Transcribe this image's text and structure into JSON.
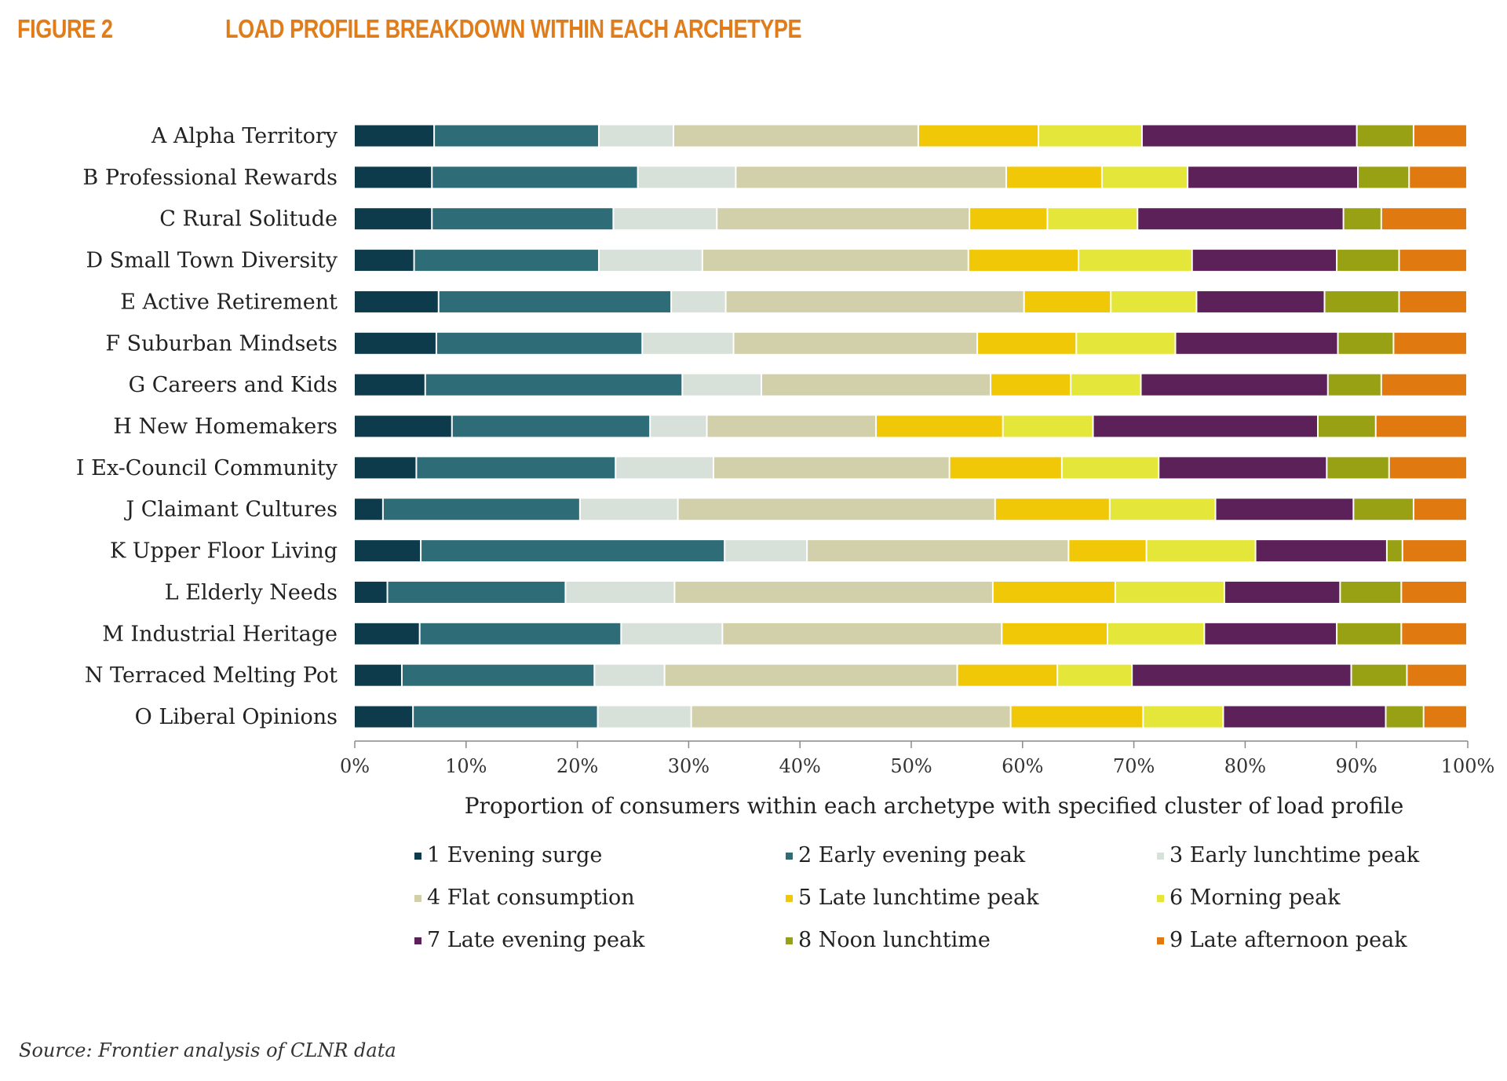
{
  "figure": {
    "label": "FIGURE 2",
    "title": "LOAD PROFILE BREAKDOWN WITHIN EACH ARCHETYPE",
    "source": "Source: Frontier analysis of CLNR data"
  },
  "chart_data": {
    "type": "bar",
    "orientation": "horizontal",
    "stacked": true,
    "percent_stacked": true,
    "title": "",
    "xlabel": "Proportion of consumers within each archetype with specified cluster of load profile",
    "ylabel": "",
    "xlim": [
      0,
      100
    ],
    "x_ticks": [
      "0%",
      "10%",
      "20%",
      "30%",
      "40%",
      "50%",
      "60%",
      "70%",
      "80%",
      "90%",
      "100%"
    ],
    "grid": false,
    "legend_position": "bottom",
    "categories": [
      "A Alpha Territory",
      "B Professional Rewards",
      "C Rural Solitude",
      "D Small Town Diversity",
      "E Active Retirement",
      "F Suburban Mindsets",
      "G Careers and Kids",
      "H New Homemakers",
      "I Ex-Council Community",
      "J Claimant Cultures",
      "K Upper Floor Living",
      "L Elderly Needs",
      "M Industrial Heritage",
      "N Terraced Melting Pot",
      "O Liberal Opinions"
    ],
    "series": [
      {
        "name": "1 Evening surge",
        "color": "#0D3B4C",
        "values": [
          7.2,
          7.0,
          7.0,
          5.4,
          7.6,
          7.4,
          6.4,
          8.8,
          5.6,
          2.6,
          6.0,
          3.0,
          5.9,
          4.3,
          5.3
        ]
      },
      {
        "name": "2 Early evening peak",
        "color": "#2E6C78",
        "values": [
          14.8,
          18.5,
          16.3,
          16.6,
          20.9,
          18.5,
          23.1,
          17.8,
          17.9,
          17.7,
          27.3,
          16.0,
          18.1,
          17.3,
          16.6
        ]
      },
      {
        "name": "3 Early lunchtime peak",
        "color": "#D8E0DA",
        "values": [
          6.7,
          8.8,
          9.3,
          9.3,
          4.9,
          8.2,
          7.1,
          5.1,
          8.8,
          8.8,
          7.4,
          9.8,
          9.1,
          6.3,
          8.4
        ]
      },
      {
        "name": "4 Flat consumption",
        "color": "#D2D0AA",
        "values": [
          22.0,
          24.3,
          22.7,
          23.9,
          26.8,
          21.9,
          20.6,
          15.2,
          21.2,
          28.5,
          23.5,
          28.6,
          25.1,
          26.3,
          28.7
        ]
      },
      {
        "name": "5 Late lunchtime peak",
        "color": "#F0C808",
        "values": [
          10.8,
          8.6,
          7.0,
          9.9,
          7.8,
          8.9,
          7.2,
          11.4,
          10.1,
          10.3,
          7.0,
          11.0,
          9.5,
          9.0,
          11.9
        ]
      },
      {
        "name": "6 Morning peak",
        "color": "#E4E63A",
        "values": [
          9.3,
          7.7,
          8.1,
          10.2,
          7.7,
          8.9,
          6.3,
          8.1,
          8.7,
          9.5,
          9.8,
          9.8,
          8.7,
          6.7,
          7.2
        ]
      },
      {
        "name": "7 Late evening peak",
        "color": "#5C2158",
        "values": [
          19.3,
          15.3,
          18.5,
          13.0,
          11.5,
          14.6,
          16.8,
          20.2,
          15.1,
          12.4,
          11.8,
          10.4,
          11.9,
          19.7,
          14.6
        ]
      },
      {
        "name": "8 Noon lunchtime",
        "color": "#98A014",
        "values": [
          5.1,
          4.6,
          3.4,
          5.6,
          6.7,
          5.0,
          4.8,
          5.2,
          5.6,
          5.4,
          1.4,
          5.5,
          5.8,
          5.0,
          3.4
        ]
      },
      {
        "name": "9 Late afternoon peak",
        "color": "#E07A10",
        "values": [
          4.8,
          5.2,
          7.7,
          6.1,
          6.1,
          6.6,
          7.7,
          8.2,
          7.0,
          4.8,
          5.8,
          5.9,
          5.9,
          5.4,
          3.9
        ]
      }
    ]
  }
}
